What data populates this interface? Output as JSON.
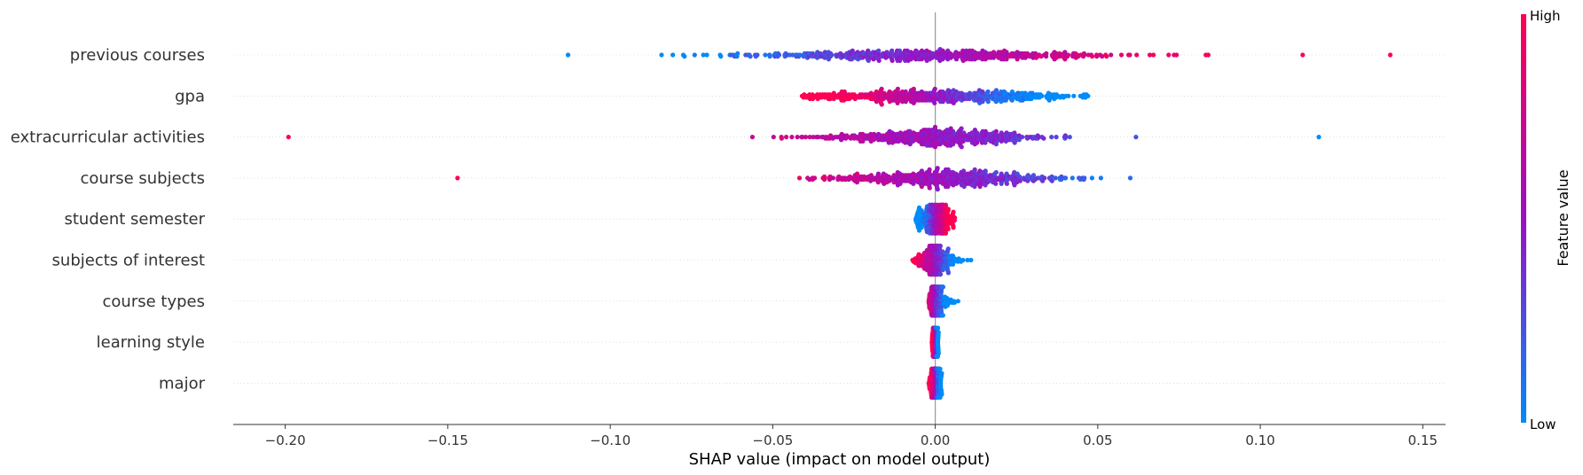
{
  "chart_data": {
    "type": "scatter",
    "subtype": "shap-beeswarm",
    "xlabel": "SHAP value (impact on model output)",
    "xlim": [
      -0.216,
      0.157
    ],
    "x_ticks": [
      -0.2,
      -0.15,
      -0.1,
      -0.05,
      0.0,
      0.05,
      0.1,
      0.15
    ],
    "x_tick_labels": [
      "−0.20",
      "−0.15",
      "−0.10",
      "−0.05",
      "0.00",
      "0.05",
      "0.10",
      "0.15"
    ],
    "features": [
      {
        "name": "previous courses",
        "shap_min": -0.113,
        "shap_max": 0.14,
        "low_side": "negative",
        "density_center": 0.0,
        "density_spread": 0.03
      },
      {
        "name": "gpa",
        "shap_min": -0.041,
        "shap_max": 0.047,
        "low_side": "positive",
        "density_center": 0.0,
        "density_spread": 0.025
      },
      {
        "name": "extracurricular activities",
        "shap_min": -0.199,
        "shap_max": 0.118,
        "low_side": "positive",
        "density_center": 0.0,
        "density_spread": 0.018
      },
      {
        "name": "course subjects",
        "shap_min": -0.147,
        "shap_max": 0.06,
        "low_side": "positive",
        "density_center": 0.003,
        "density_spread": 0.018
      },
      {
        "name": "student semester",
        "shap_min": -0.006,
        "shap_max": 0.006,
        "low_side": "negative",
        "density_center": 0.0,
        "density_spread": 0.004
      },
      {
        "name": "subjects of interest",
        "shap_min": -0.007,
        "shap_max": 0.011,
        "low_side": "positive",
        "density_center": 0.0,
        "density_spread": 0.003
      },
      {
        "name": "course types",
        "shap_min": -0.002,
        "shap_max": 0.007,
        "low_side": "positive",
        "density_center": 0.0,
        "density_spread": 0.0015
      },
      {
        "name": "learning style",
        "shap_min": -0.001,
        "shap_max": 0.001,
        "low_side": "positive",
        "density_center": 0.0,
        "density_spread": 0.0006
      },
      {
        "name": "major",
        "shap_min": -0.002,
        "shap_max": 0.002,
        "low_side": "positive",
        "density_center": 0.0,
        "density_spread": 0.001
      }
    ],
    "colorbar": {
      "title": "Feature value",
      "high_label": "High",
      "low_label": "Low",
      "high_color": "#ff0052",
      "mid_color": "#9a10c4",
      "low_color": "#008bfb"
    },
    "zero_line": true,
    "grid": false
  }
}
